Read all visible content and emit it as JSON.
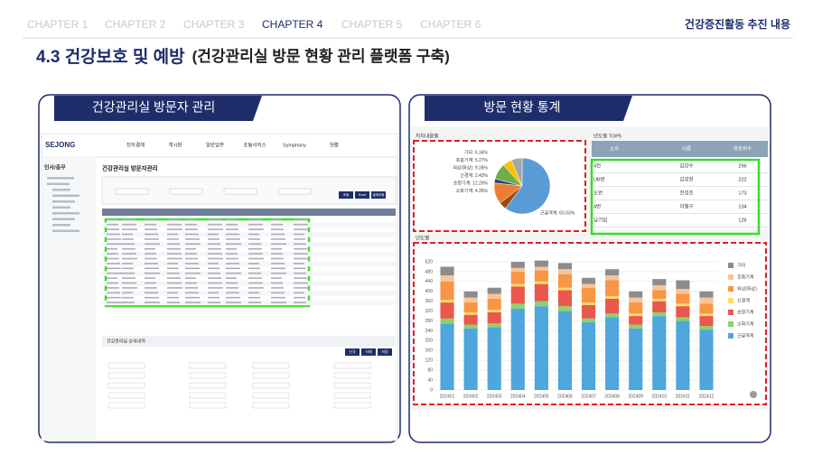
{
  "header": {
    "chapters": [
      "CHAPTER 1",
      "CHAPTER 2",
      "CHAPTER 3",
      "CHAPTER 4",
      "CHAPTER 5",
      "CHAPTER 6"
    ],
    "section": "건강증진활동 추진 내용"
  },
  "title": {
    "main": "4.3 건강보호 및 예방",
    "sub": "(건강관리실 방문 현황 관리 플랫폼 구축)"
  },
  "left_panel": {
    "heading": "건강관리실 방문자 관리",
    "screen": {
      "logo": "SEJONG",
      "menu": [
        "전자결재",
        "게시판",
        "일반업무",
        "포털서비스",
        "Symphony",
        "현황"
      ],
      "sidebar_title": "인사/총무",
      "page_title": "건강관리실 방문자관리",
      "buttons": [
        "조회",
        "Excel",
        "결재요청"
      ],
      "detail_title": "건강관리실 상세내역",
      "detail_buttons": [
        "신규",
        "삭제",
        "저장"
      ]
    }
  },
  "right_panel": {
    "heading": "방문 현황 통계",
    "top5": {
      "title": "년도별 TOP5",
      "columns": [
        "소속",
        "이름",
        "방문회수"
      ],
      "rows": [
        {
          "dept": "4전",
          "name": "김강수",
          "count": 296
        },
        {
          "dept": "UB번",
          "name": "김성현",
          "count": 222
        },
        {
          "dept": "도번",
          "name": "전성조",
          "count": 173
        },
        {
          "dept": "4번",
          "name": "이철구",
          "count": 134
        },
        {
          "dept": "남기업",
          "count": 126
        }
      ]
    }
  },
  "chart_data": [
    {
      "type": "pie",
      "title": "처치내용별",
      "labels": [
        "기타: 6.34%",
        "호흡기계: 5.27%",
        "외상(화상): 9.28%",
        "신경계: 2.43%",
        "순환기계: 12.20%",
        "소화기계: 4.35%",
        "근골격계: 60.03%"
      ],
      "values": [
        6.34,
        5.27,
        9.28,
        2.43,
        12.2,
        4.35,
        60.03
      ],
      "colors": [
        "#a5a5a5",
        "#ffc000",
        "#70ad47",
        "#264478",
        "#ed7d31",
        "#9e480e",
        "#5b9bd5"
      ]
    },
    {
      "type": "bar",
      "stacked": true,
      "title": "년도별",
      "categories": [
        "202401",
        "202402",
        "202403",
        "202404",
        "202405",
        "202406",
        "202407",
        "202408",
        "202409",
        "202410",
        "202411",
        "202412"
      ],
      "series": [
        {
          "name": "기타",
          "color": "#8c8c8c",
          "values": [
            35,
            25,
            25,
            25,
            25,
            25,
            25,
            25,
            25,
            25,
            35,
            25
          ]
        },
        {
          "name": "호흡기계",
          "color": "#f8c49a",
          "values": [
            25,
            20,
            20,
            15,
            15,
            20,
            15,
            20,
            20,
            20,
            20,
            25
          ]
        },
        {
          "name": "외상(화상)",
          "color": "#f79646",
          "values": [
            75,
            40,
            45,
            50,
            45,
            55,
            60,
            65,
            45,
            35,
            40,
            40
          ]
        },
        {
          "name": "신경계",
          "color": "#ffd966",
          "values": [
            10,
            10,
            10,
            10,
            10,
            10,
            10,
            10,
            10,
            10,
            10,
            10
          ]
        },
        {
          "name": "순환기계",
          "color": "#e8584c",
          "values": [
            65,
            40,
            45,
            70,
            70,
            65,
            55,
            60,
            35,
            45,
            45,
            40
          ]
        },
        {
          "name": "소화기계",
          "color": "#8fd16a",
          "values": [
            20,
            15,
            15,
            20,
            20,
            20,
            15,
            15,
            15,
            15,
            15,
            15
          ]
        },
        {
          "name": "근골격계",
          "color": "#4ea6dc",
          "values": [
            270,
            250,
            255,
            330,
            340,
            320,
            275,
            295,
            250,
            300,
            280,
            245
          ]
        }
      ],
      "ylim": [
        0,
        520
      ],
      "yticks": [
        0,
        40,
        80,
        120,
        160,
        200,
        240,
        280,
        320,
        360,
        400,
        440,
        480,
        520
      ],
      "grid": true,
      "legend": "right"
    }
  ]
}
